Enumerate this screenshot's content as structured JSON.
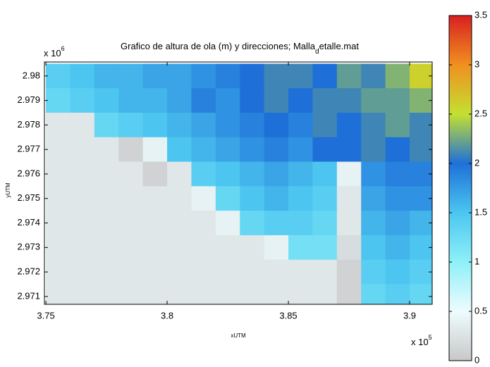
{
  "chart_data": {
    "type": "heatmap",
    "title": "Grafico de altura de ola (m) y direcciones; Malla",
    "title_subscript": "d",
    "title_suffix": "etalle.mat",
    "x_label": "xUTM",
    "y_label": "yUTM",
    "x_multiplier": "x 10",
    "x_multiplier_exponent": "5",
    "y_multiplier": "x 10",
    "y_multiplier_exponent": "6",
    "x": [
      375500,
      376500,
      377500,
      378500,
      379500,
      380500,
      381500,
      382500,
      383500,
      384500,
      385500,
      386500,
      387500,
      388500,
      389500,
      390500
    ],
    "y": [
      2980000,
      2979000,
      2978000,
      2977000,
      2976000,
      2975000,
      2974000,
      2973000,
      2972000,
      2971000
    ],
    "z": [
      [
        1.4,
        1.5,
        1.6,
        1.6,
        1.7,
        1.7,
        1.8,
        1.9,
        2.0,
        2.1,
        2.1,
        2.0,
        2.2,
        2.1,
        2.3,
        2.6
      ],
      [
        1.3,
        1.4,
        1.5,
        1.6,
        1.6,
        1.7,
        1.9,
        1.8,
        2.0,
        2.1,
        2.0,
        2.1,
        2.1,
        2.2,
        2.2,
        2.3
      ],
      [
        0.3,
        0.3,
        1.3,
        1.4,
        1.5,
        1.6,
        1.7,
        1.8,
        1.9,
        2.0,
        1.9,
        2.1,
        2.0,
        2.1,
        2.2,
        2.1
      ],
      [
        0.3,
        0.3,
        0.3,
        0.1,
        0.4,
        1.5,
        1.6,
        1.7,
        1.8,
        1.9,
        1.8,
        2.0,
        2.0,
        2.1,
        2.0,
        2.1
      ],
      [
        0.3,
        0.3,
        0.3,
        0.3,
        0.1,
        0.3,
        1.4,
        1.5,
        1.6,
        1.7,
        1.6,
        1.5,
        0.4,
        1.8,
        1.9,
        1.9
      ],
      [
        0.3,
        0.3,
        0.3,
        0.3,
        0.3,
        0.3,
        0.4,
        1.3,
        1.5,
        1.6,
        1.5,
        1.4,
        0.3,
        1.7,
        1.8,
        1.8
      ],
      [
        0.3,
        0.3,
        0.3,
        0.3,
        0.3,
        0.3,
        0.3,
        0.4,
        1.3,
        1.4,
        1.4,
        1.3,
        0.3,
        1.6,
        1.7,
        1.6
      ],
      [
        0.3,
        0.3,
        0.3,
        0.3,
        0.3,
        0.3,
        0.3,
        0.3,
        0.3,
        0.4,
        1.2,
        1.2,
        0.2,
        1.5,
        1.6,
        1.5
      ],
      [
        0.3,
        0.3,
        0.3,
        0.3,
        0.3,
        0.3,
        0.3,
        0.3,
        0.3,
        0.3,
        0.3,
        0.3,
        0.1,
        1.4,
        1.5,
        1.4
      ],
      [
        0.3,
        0.3,
        0.3,
        0.3,
        0.3,
        0.3,
        0.3,
        0.3,
        0.3,
        0.3,
        0.3,
        0.3,
        0.1,
        1.3,
        1.4,
        1.3
      ]
    ],
    "xlim": [
      374940,
      390930
    ],
    "ylim": [
      2970680,
      2980570
    ],
    "xticks": [
      {
        "value": 375000,
        "label": "3.75"
      },
      {
        "value": 380000,
        "label": "3.8"
      },
      {
        "value": 385000,
        "label": "3.85"
      },
      {
        "value": 390000,
        "label": "3.9"
      }
    ],
    "yticks": [
      {
        "value": 2971000,
        "label": "2.971"
      },
      {
        "value": 2972000,
        "label": "2.972"
      },
      {
        "value": 2973000,
        "label": "2.973"
      },
      {
        "value": 2974000,
        "label": "2.974"
      },
      {
        "value": 2975000,
        "label": "2.975"
      },
      {
        "value": 2976000,
        "label": "2.976"
      },
      {
        "value": 2977000,
        "label": "2.977"
      },
      {
        "value": 2978000,
        "label": "2.978"
      },
      {
        "value": 2979000,
        "label": "2.979"
      },
      {
        "value": 2980000,
        "label": "2.98"
      }
    ],
    "clim": [
      0,
      3.5
    ],
    "cticks": [
      0,
      0.5,
      1,
      1.5,
      2,
      2.5,
      3,
      3.5
    ],
    "colormap": [
      "#c8c8c8",
      "#eefcfe",
      "#8ef0f8",
      "#4cc6f0",
      "#1e70d8",
      "#c4e030",
      "#f09020",
      "#d82020"
    ]
  }
}
